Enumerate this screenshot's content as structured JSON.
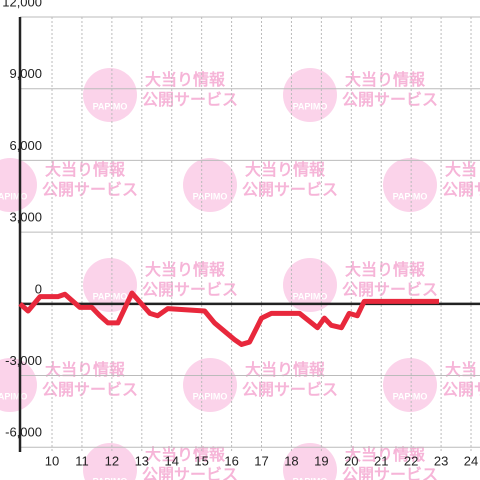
{
  "chart_data": {
    "type": "line",
    "watermark": {
      "brand": "PAPIMO",
      "line1": "大当り情報",
      "line2": "公開サービス"
    },
    "x": [
      8.93,
      9.2,
      9.6,
      10.2,
      10.43,
      10.93,
      11.33,
      11.6,
      11.87,
      12.2,
      12.67,
      13.27,
      13.53,
      13.87,
      15.1,
      15.43,
      16.1,
      16.33,
      16.6,
      17,
      17.33,
      18.27,
      18.87,
      19.1,
      19.33,
      19.67,
      19.93,
      20.2,
      20.43,
      22.93
    ],
    "series": [
      {
        "color": "#e8283c",
        "values": [
          0,
          -300,
          300,
          300,
          400,
          -150,
          -150,
          -500,
          -800,
          -800,
          450,
          -400,
          -500,
          -200,
          -300,
          -800,
          -1500,
          -1700,
          -1600,
          -600,
          -400,
          -400,
          -1000,
          -600,
          -900,
          -1000,
          -400,
          -500,
          100,
          100
        ]
      }
    ],
    "xlim": [
      8.93,
      24.3
    ],
    "xticks": [
      10,
      11,
      12,
      13,
      14,
      15,
      16,
      17,
      18,
      19,
      20,
      21,
      22,
      23,
      24
    ],
    "ylim": [
      -6200,
      12000
    ],
    "yticks": [
      {
        "value": -6000,
        "label": "-6,000"
      },
      {
        "value": -3000,
        "label": "-3,000"
      },
      0,
      {
        "value": 3000,
        "label": "3,000"
      },
      {
        "value": 6000,
        "label": "6,000"
      },
      {
        "value": 9000,
        "label": "9,000"
      },
      {
        "value": 12000,
        "label": "12,000"
      }
    ],
    "grid": true
  }
}
